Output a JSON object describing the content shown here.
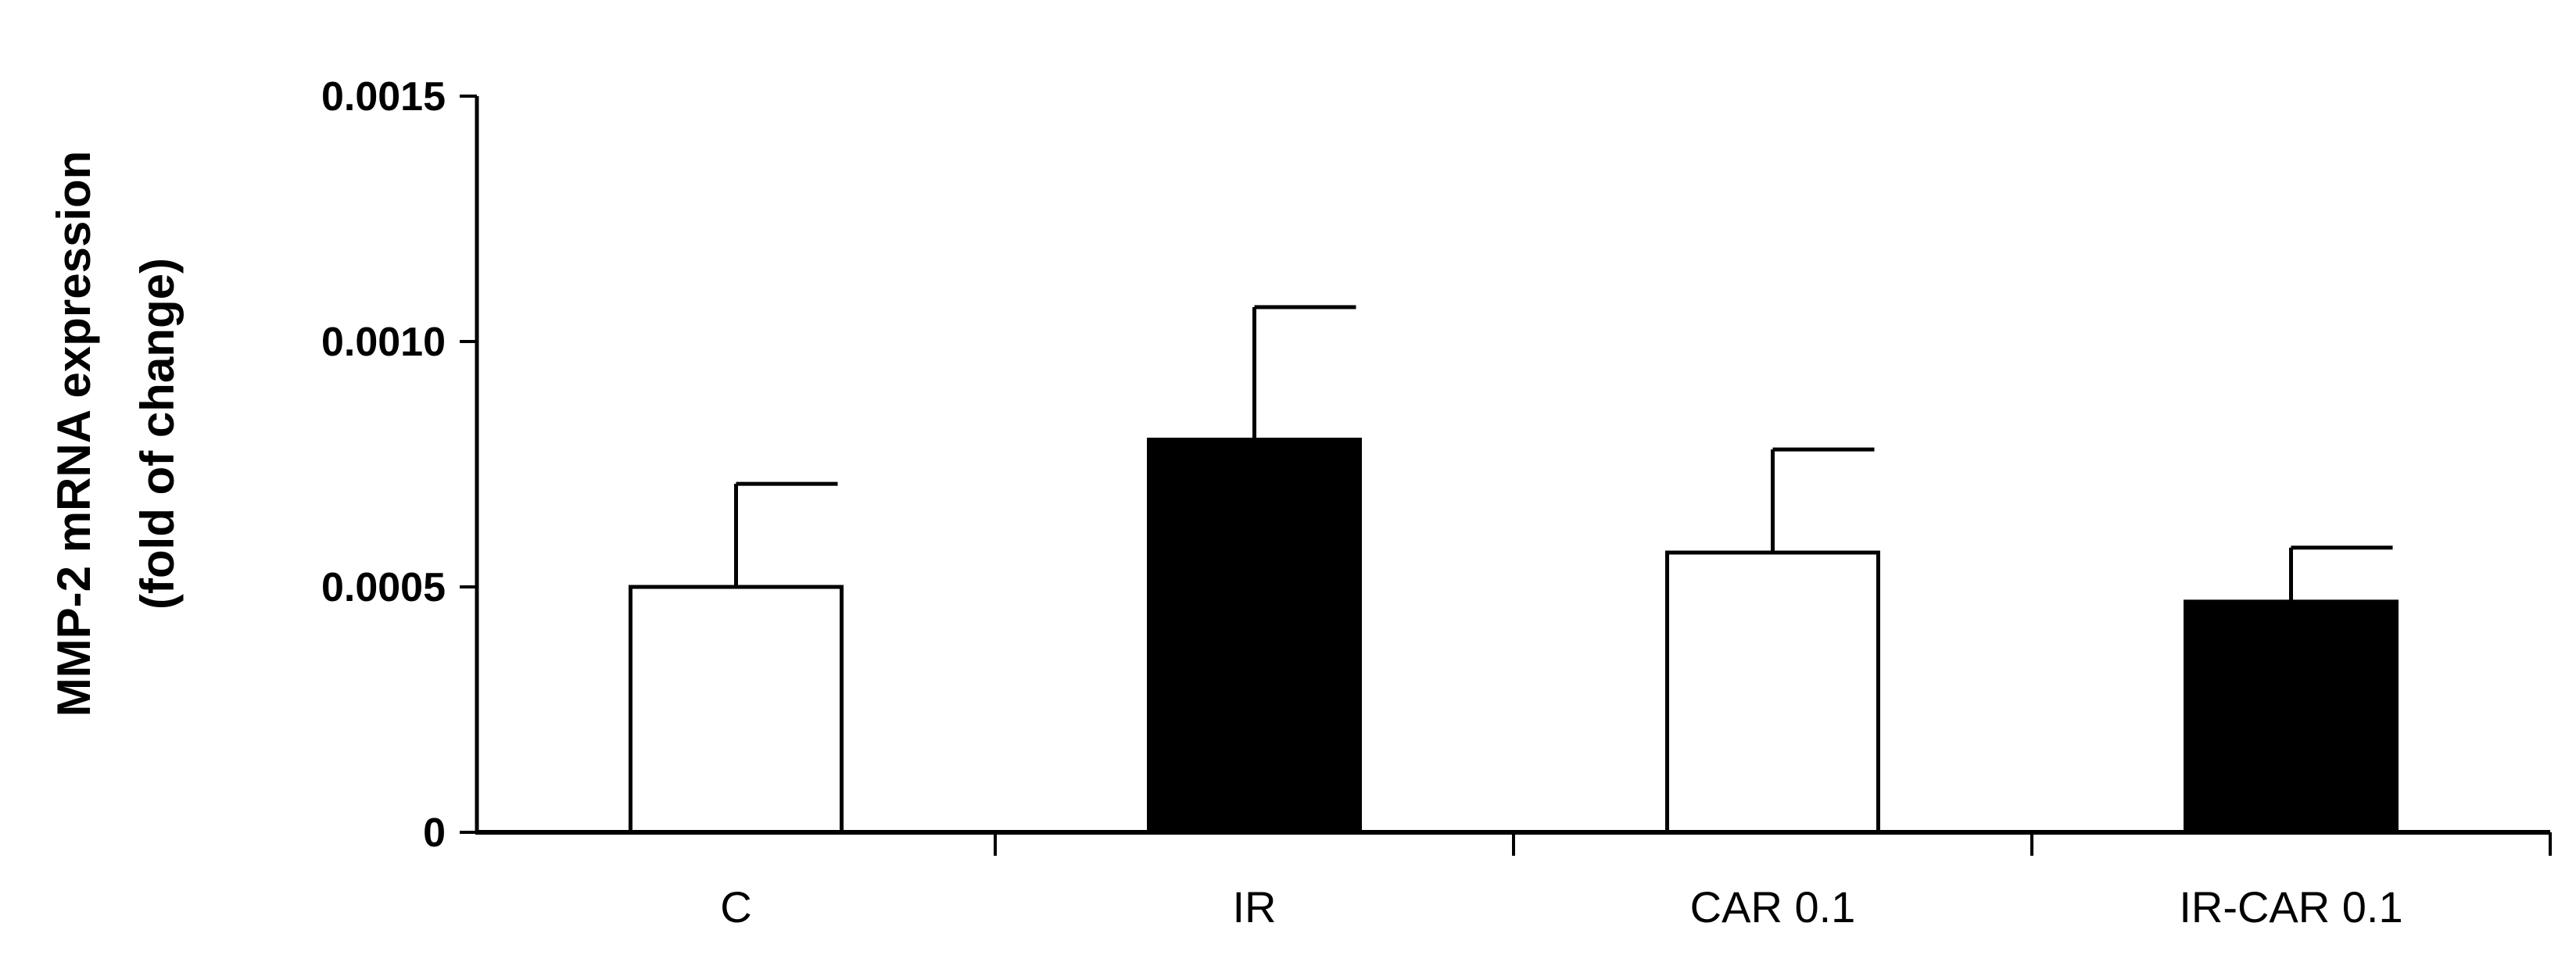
{
  "chart_data": {
    "type": "bar",
    "title": "",
    "xlabel": "",
    "ylabel_lines": [
      "MMP-2 mRNA expression",
      "(fold of change)"
    ],
    "categories": [
      "C",
      "IR",
      "CAR 0.1",
      "IR-CAR 0.1"
    ],
    "values": [
      0.0005,
      0.0008,
      0.00057,
      0.00047
    ],
    "errors": [
      0.00021,
      0.00027,
      0.00021,
      0.00011
    ],
    "fills": [
      "#ffffff",
      "#000000",
      "#ffffff",
      "#000000"
    ],
    "ylim": [
      0,
      0.0015
    ],
    "yticks": [
      {
        "value": 0,
        "label": "0"
      },
      {
        "value": 0.0005,
        "label": "0.0005"
      },
      {
        "value": 0.001,
        "label": "0.0010"
      },
      {
        "value": 0.0015,
        "label": "0.0015"
      }
    ],
    "grid": false,
    "legend": "none"
  }
}
